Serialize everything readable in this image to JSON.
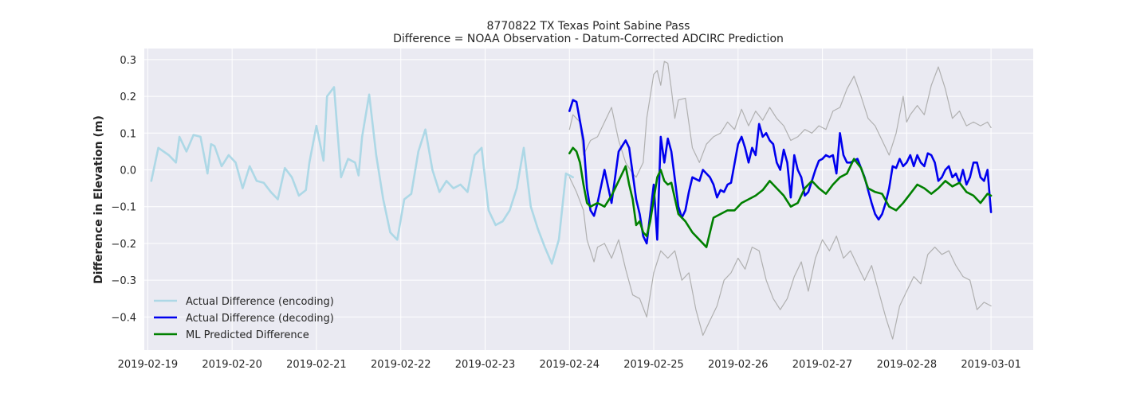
{
  "chart_data": {
    "type": "line",
    "title": "8770822 TX Texas Point Sabine Pass",
    "subtitle": "Difference = NOAA Observation - Datum-Corrected ADCIRC Prediction",
    "xlabel": "",
    "ylabel": "Difference in Elevation (m)",
    "xlim": [
      "2019-02-18 23:00",
      "2019-03-01 12:00"
    ],
    "ylim": [
      -0.49,
      0.33
    ],
    "x_ticks": [
      "2019-02-19",
      "2019-02-20",
      "2019-02-21",
      "2019-02-22",
      "2019-02-23",
      "2019-02-24",
      "2019-02-25",
      "2019-02-26",
      "2019-02-27",
      "2019-02-28",
      "2019-03-01"
    ],
    "y_ticks": [
      -0.4,
      -0.3,
      -0.2,
      -0.1,
      0.0,
      0.1,
      0.2,
      0.3
    ],
    "y_tick_labels": [
      "−0.4",
      "−0.3",
      "−0.2",
      "−0.1",
      "0.0",
      "0.1",
      "0.2",
      "0.3"
    ],
    "grid": true,
    "legend_position": "lower-left",
    "colors": {
      "background": "#eaeaf2",
      "grid": "#ffffff",
      "encoding": "#add8e6",
      "decoding": "#0000ee",
      "predicted": "#008000",
      "band": "#b0b0b0"
    },
    "series": [
      {
        "name": "Actual Difference (encoding)",
        "color": "#add8e6",
        "x": [
          "2019-02-19 01:00",
          "2019-02-19 03:00",
          "2019-02-19 06:00",
          "2019-02-19 08:00",
          "2019-02-19 09:00",
          "2019-02-19 11:00",
          "2019-02-19 13:00",
          "2019-02-19 15:00",
          "2019-02-19 17:00",
          "2019-02-19 18:00",
          "2019-02-19 19:00",
          "2019-02-19 21:00",
          "2019-02-19 23:00",
          "2019-02-20 01:00",
          "2019-02-20 03:00",
          "2019-02-20 05:00",
          "2019-02-20 07:00",
          "2019-02-20 09:00",
          "2019-02-20 11:00",
          "2019-02-20 13:00",
          "2019-02-20 15:00",
          "2019-02-20 17:00",
          "2019-02-20 19:00",
          "2019-02-20 21:00",
          "2019-02-20 22:00",
          "2019-02-21 00:00",
          "2019-02-21 02:00",
          "2019-02-21 03:00",
          "2019-02-21 05:00",
          "2019-02-21 07:00",
          "2019-02-21 09:00",
          "2019-02-21 11:00",
          "2019-02-21 12:00",
          "2019-02-21 13:00",
          "2019-02-21 15:00",
          "2019-02-21 17:00",
          "2019-02-21 19:00",
          "2019-02-21 21:00",
          "2019-02-21 23:00",
          "2019-02-22 01:00",
          "2019-02-22 03:00",
          "2019-02-22 05:00",
          "2019-02-22 07:00",
          "2019-02-22 09:00",
          "2019-02-22 11:00",
          "2019-02-22 13:00",
          "2019-02-22 15:00",
          "2019-02-22 17:00",
          "2019-02-22 19:00",
          "2019-02-22 21:00",
          "2019-02-22 23:00",
          "2019-02-23 01:00",
          "2019-02-23 03:00",
          "2019-02-23 05:00",
          "2019-02-23 07:00",
          "2019-02-23 09:00",
          "2019-02-23 11:00",
          "2019-02-23 13:00",
          "2019-02-23 15:00",
          "2019-02-23 17:00",
          "2019-02-23 19:00",
          "2019-02-23 21:00",
          "2019-02-23 23:00",
          "2019-02-24 01:00"
        ],
        "y": [
          -0.03,
          0.06,
          0.04,
          0.02,
          0.09,
          0.05,
          0.095,
          0.09,
          -0.01,
          0.07,
          0.065,
          0.01,
          0.04,
          0.02,
          -0.05,
          0.01,
          -0.03,
          -0.035,
          -0.06,
          -0.08,
          0.005,
          -0.02,
          -0.07,
          -0.055,
          0.02,
          0.12,
          0.025,
          0.2,
          0.225,
          -0.02,
          0.03,
          0.02,
          -0.015,
          0.09,
          0.205,
          0.04,
          -0.08,
          -0.17,
          -0.19,
          -0.08,
          -0.065,
          0.05,
          0.11,
          0.0,
          -0.06,
          -0.03,
          -0.05,
          -0.04,
          -0.06,
          0.04,
          0.06,
          -0.11,
          -0.15,
          -0.14,
          -0.11,
          -0.05,
          0.06,
          -0.1,
          -0.16,
          -0.21,
          -0.255,
          -0.19,
          -0.01,
          -0.02
        ]
      },
      {
        "name": "Actual Difference (decoding)",
        "color": "#0000ee",
        "x": [
          "2019-02-24 00:00",
          "2019-02-24 01:00",
          "2019-02-24 02:00",
          "2019-02-24 04:00",
          "2019-02-24 05:00",
          "2019-02-24 06:00",
          "2019-02-24 07:00",
          "2019-02-24 08:00",
          "2019-02-24 10:00",
          "2019-02-24 12:00",
          "2019-02-24 13:00",
          "2019-02-24 14:00",
          "2019-02-24 16:00",
          "2019-02-24 17:00",
          "2019-02-24 18:00",
          "2019-02-24 19:00",
          "2019-02-24 20:00",
          "2019-02-24 21:00",
          "2019-02-24 22:00",
          "2019-02-25 00:00",
          "2019-02-25 01:00",
          "2019-02-25 02:00",
          "2019-02-25 03:00",
          "2019-02-25 04:00",
          "2019-02-25 05:00",
          "2019-02-25 07:00",
          "2019-02-25 08:00",
          "2019-02-25 09:00",
          "2019-02-25 10:00",
          "2019-02-25 11:00",
          "2019-02-25 13:00",
          "2019-02-25 14:00",
          "2019-02-25 15:00",
          "2019-02-25 16:00",
          "2019-02-25 17:00",
          "2019-02-25 18:00",
          "2019-02-25 19:00",
          "2019-02-25 20:00",
          "2019-02-25 21:00",
          "2019-02-25 22:00",
          "2019-02-26 00:00",
          "2019-02-26 01:00",
          "2019-02-26 02:00",
          "2019-02-26 03:00",
          "2019-02-26 04:00",
          "2019-02-26 05:00",
          "2019-02-26 06:00",
          "2019-02-26 07:00",
          "2019-02-26 08:00",
          "2019-02-26 09:00",
          "2019-02-26 10:00",
          "2019-02-26 11:00",
          "2019-02-26 12:00",
          "2019-02-26 13:00",
          "2019-02-26 14:00",
          "2019-02-26 15:00",
          "2019-02-26 16:00",
          "2019-02-26 17:00",
          "2019-02-26 18:00",
          "2019-02-26 19:00",
          "2019-02-26 20:00",
          "2019-02-26 21:00",
          "2019-02-26 22:00",
          "2019-02-26 23:00",
          "2019-02-27 00:00",
          "2019-02-27 01:00",
          "2019-02-27 02:00",
          "2019-02-27 03:00",
          "2019-02-27 04:00",
          "2019-02-27 05:00",
          "2019-02-27 06:00",
          "2019-02-27 07:00",
          "2019-02-27 08:00",
          "2019-02-27 10:00",
          "2019-02-27 12:00",
          "2019-02-27 14:00",
          "2019-02-27 15:00",
          "2019-02-27 16:00",
          "2019-02-27 17:00",
          "2019-02-27 18:00",
          "2019-02-27 19:00",
          "2019-02-27 20:00",
          "2019-02-27 21:00",
          "2019-02-27 22:00",
          "2019-02-27 23:00",
          "2019-02-28 00:00",
          "2019-02-28 01:00",
          "2019-02-28 02:00",
          "2019-02-28 03:00",
          "2019-02-28 04:00",
          "2019-02-28 05:00",
          "2019-02-28 06:00",
          "2019-02-28 07:00",
          "2019-02-28 08:00",
          "2019-02-28 09:00",
          "2019-02-28 10:00",
          "2019-02-28 11:00",
          "2019-02-28 12:00",
          "2019-02-28 13:00",
          "2019-02-28 14:00",
          "2019-02-28 15:00",
          "2019-02-28 16:00",
          "2019-02-28 17:00",
          "2019-02-28 18:00",
          "2019-02-28 19:00",
          "2019-02-28 20:00",
          "2019-02-28 21:00",
          "2019-02-28 22:00",
          "2019-02-28 23:00",
          "2019-03-01 00:00"
        ],
        "y": [
          0.16,
          0.19,
          0.185,
          0.08,
          -0.05,
          -0.11,
          -0.125,
          -0.09,
          0.0,
          -0.09,
          -0.02,
          0.05,
          0.08,
          0.06,
          -0.01,
          -0.08,
          -0.12,
          -0.18,
          -0.2,
          -0.04,
          -0.19,
          0.09,
          0.02,
          0.085,
          0.05,
          -0.1,
          -0.13,
          -0.11,
          -0.06,
          -0.02,
          -0.03,
          0.0,
          -0.01,
          -0.02,
          -0.04,
          -0.075,
          -0.055,
          -0.06,
          -0.04,
          -0.035,
          0.07,
          0.09,
          0.06,
          0.02,
          0.06,
          0.04,
          0.125,
          0.09,
          0.1,
          0.08,
          0.07,
          0.02,
          0.0,
          0.055,
          0.02,
          -0.075,
          0.04,
          0.0,
          -0.02,
          -0.07,
          -0.06,
          -0.03,
          0.0,
          0.025,
          0.03,
          0.04,
          0.035,
          0.04,
          -0.01,
          0.1,
          0.04,
          0.02,
          0.02,
          0.03,
          -0.02,
          -0.09,
          -0.12,
          -0.135,
          -0.12,
          -0.09,
          -0.05,
          0.01,
          0.005,
          0.03,
          0.01,
          0.02,
          0.04,
          0.01,
          0.04,
          0.02,
          0.01,
          0.045,
          0.04,
          0.02,
          -0.03,
          -0.02,
          0.0,
          0.01,
          -0.02,
          -0.01,
          -0.035,
          0.0,
          -0.04,
          -0.02,
          0.02,
          0.02,
          -0.02,
          -0.03,
          0.0,
          -0.115
        ]
      },
      {
        "name": "ML Predicted Difference",
        "color": "#008000",
        "x": [
          "2019-02-24 00:00",
          "2019-02-24 01:00",
          "2019-02-24 02:00",
          "2019-02-24 03:00",
          "2019-02-24 04:00",
          "2019-02-24 05:00",
          "2019-02-24 06:00",
          "2019-02-24 08:00",
          "2019-02-24 10:00",
          "2019-02-24 12:00",
          "2019-02-24 14:00",
          "2019-02-24 16:00",
          "2019-02-24 17:00",
          "2019-02-24 18:00",
          "2019-02-24 19:00",
          "2019-02-24 20:00",
          "2019-02-24 21:00",
          "2019-02-24 22:00",
          "2019-02-24 23:00",
          "2019-02-25 00:00",
          "2019-02-25 01:00",
          "2019-02-25 02:00",
          "2019-02-25 03:00",
          "2019-02-25 04:00",
          "2019-02-25 05:00",
          "2019-02-25 07:00",
          "2019-02-25 09:00",
          "2019-02-25 11:00",
          "2019-02-25 13:00",
          "2019-02-25 15:00",
          "2019-02-25 17:00",
          "2019-02-25 19:00",
          "2019-02-25 21:00",
          "2019-02-25 23:00",
          "2019-02-26 01:00",
          "2019-02-26 03:00",
          "2019-02-26 05:00",
          "2019-02-26 07:00",
          "2019-02-26 09:00",
          "2019-02-26 11:00",
          "2019-02-26 13:00",
          "2019-02-26 15:00",
          "2019-02-26 17:00",
          "2019-02-26 19:00",
          "2019-02-26 21:00",
          "2019-02-26 23:00",
          "2019-02-27 01:00",
          "2019-02-27 03:00",
          "2019-02-27 05:00",
          "2019-02-27 07:00",
          "2019-02-27 09:00",
          "2019-02-27 11:00",
          "2019-02-27 13:00",
          "2019-02-27 15:00",
          "2019-02-27 17:00",
          "2019-02-27 19:00",
          "2019-02-27 21:00",
          "2019-02-27 23:00",
          "2019-02-28 01:00",
          "2019-02-28 03:00",
          "2019-02-28 05:00",
          "2019-02-28 07:00",
          "2019-02-28 09:00",
          "2019-02-28 11:00",
          "2019-02-28 13:00",
          "2019-02-28 15:00",
          "2019-02-28 17:00",
          "2019-02-28 19:00",
          "2019-02-28 21:00",
          "2019-02-28 23:00",
          "2019-03-01 00:00"
        ],
        "y": [
          0.045,
          0.06,
          0.05,
          0.02,
          -0.04,
          -0.09,
          -0.1,
          -0.09,
          -0.1,
          -0.07,
          -0.03,
          0.01,
          -0.04,
          -0.08,
          -0.15,
          -0.14,
          -0.17,
          -0.18,
          -0.14,
          -0.08,
          -0.02,
          0.0,
          -0.03,
          -0.04,
          -0.035,
          -0.12,
          -0.14,
          -0.17,
          -0.19,
          -0.21,
          -0.13,
          -0.12,
          -0.11,
          -0.11,
          -0.09,
          -0.08,
          -0.07,
          -0.055,
          -0.03,
          -0.05,
          -0.07,
          -0.1,
          -0.09,
          -0.05,
          -0.03,
          -0.05,
          -0.065,
          -0.04,
          -0.02,
          -0.01,
          0.03,
          0.005,
          -0.05,
          -0.06,
          -0.065,
          -0.1,
          -0.11,
          -0.09,
          -0.065,
          -0.04,
          -0.05,
          -0.065,
          -0.05,
          -0.03,
          -0.045,
          -0.035,
          -0.06,
          -0.07,
          -0.09,
          -0.065,
          -0.07
        ]
      },
      {
        "color": "#b0b0b0",
        "x": [
          "2019-02-24 00:00",
          "2019-02-24 01:00",
          "2019-02-24 02:00",
          "2019-02-24 03:00",
          "2019-02-24 04:00",
          "2019-02-24 06:00",
          "2019-02-24 08:00",
          "2019-02-24 10:00",
          "2019-02-24 12:00",
          "2019-02-24 14:00",
          "2019-02-24 16:00",
          "2019-02-24 18:00",
          "2019-02-24 19:00",
          "2019-02-24 20:00",
          "2019-02-24 21:00",
          "2019-02-24 22:00",
          "2019-02-25 00:00",
          "2019-02-25 01:00",
          "2019-02-25 02:00",
          "2019-02-25 03:00",
          "2019-02-25 04:00",
          "2019-02-25 05:00",
          "2019-02-25 06:00",
          "2019-02-25 07:00",
          "2019-02-25 09:00",
          "2019-02-25 11:00",
          "2019-02-25 13:00",
          "2019-02-25 15:00",
          "2019-02-25 17:00",
          "2019-02-25 19:00",
          "2019-02-25 21:00",
          "2019-02-25 23:00",
          "2019-02-26 01:00",
          "2019-02-26 03:00",
          "2019-02-26 05:00",
          "2019-02-26 07:00",
          "2019-02-26 09:00",
          "2019-02-26 11:00",
          "2019-02-26 13:00",
          "2019-02-26 15:00",
          "2019-02-26 17:00",
          "2019-02-26 19:00",
          "2019-02-26 21:00",
          "2019-02-26 23:00",
          "2019-02-27 01:00",
          "2019-02-27 03:00",
          "2019-02-27 05:00",
          "2019-02-27 07:00",
          "2019-02-27 09:00",
          "2019-02-27 11:00",
          "2019-02-27 13:00",
          "2019-02-27 15:00",
          "2019-02-27 17:00",
          "2019-02-27 19:00",
          "2019-02-27 21:00",
          "2019-02-27 23:00",
          "2019-02-28 00:00",
          "2019-02-28 01:00",
          "2019-02-28 03:00",
          "2019-02-28 05:00",
          "2019-02-28 07:00",
          "2019-02-28 09:00",
          "2019-02-28 11:00",
          "2019-02-28 13:00",
          "2019-02-28 15:00",
          "2019-02-28 17:00",
          "2019-02-28 19:00",
          "2019-02-28 21:00",
          "2019-02-28 23:00",
          "2019-03-01 00:00"
        ],
        "y": [
          0.11,
          0.15,
          0.14,
          0.13,
          0.04,
          0.08,
          0.09,
          0.13,
          0.17,
          0.08,
          0.02,
          -0.01,
          -0.02,
          0.0,
          0.02,
          0.14,
          0.26,
          0.27,
          0.23,
          0.295,
          0.29,
          0.22,
          0.14,
          0.19,
          0.195,
          0.06,
          0.02,
          0.07,
          0.09,
          0.1,
          0.13,
          0.11,
          0.165,
          0.12,
          0.16,
          0.135,
          0.17,
          0.14,
          0.12,
          0.08,
          0.09,
          0.11,
          0.1,
          0.12,
          0.11,
          0.16,
          0.17,
          0.22,
          0.255,
          0.2,
          0.14,
          0.12,
          0.08,
          0.04,
          0.1,
          0.2,
          0.13,
          0.15,
          0.175,
          0.15,
          0.23,
          0.28,
          0.22,
          0.14,
          0.16,
          0.12,
          0.13,
          0.12,
          0.13,
          0.115
        ]
      },
      {
        "color": "#b0b0b0",
        "x": [
          "2019-02-24 00:00",
          "2019-02-24 02:00",
          "2019-02-24 04:00",
          "2019-02-24 05:00",
          "2019-02-24 06:00",
          "2019-02-24 07:00",
          "2019-02-24 08:00",
          "2019-02-24 10:00",
          "2019-02-24 12:00",
          "2019-02-24 14:00",
          "2019-02-24 16:00",
          "2019-02-24 18:00",
          "2019-02-24 20:00",
          "2019-02-24 22:00",
          "2019-02-25 00:00",
          "2019-02-25 02:00",
          "2019-02-25 04:00",
          "2019-02-25 06:00",
          "2019-02-25 08:00",
          "2019-02-25 10:00",
          "2019-02-25 12:00",
          "2019-02-25 14:00",
          "2019-02-25 16:00",
          "2019-02-25 18:00",
          "2019-02-25 20:00",
          "2019-02-25 22:00",
          "2019-02-26 00:00",
          "2019-02-26 02:00",
          "2019-02-26 04:00",
          "2019-02-26 06:00",
          "2019-02-26 08:00",
          "2019-02-26 10:00",
          "2019-02-26 12:00",
          "2019-02-26 14:00",
          "2019-02-26 16:00",
          "2019-02-26 18:00",
          "2019-02-26 20:00",
          "2019-02-26 22:00",
          "2019-02-27 00:00",
          "2019-02-27 02:00",
          "2019-02-27 04:00",
          "2019-02-27 06:00",
          "2019-02-27 08:00",
          "2019-02-27 10:00",
          "2019-02-27 12:00",
          "2019-02-27 14:00",
          "2019-02-27 16:00",
          "2019-02-27 18:00",
          "2019-02-27 20:00",
          "2019-02-27 22:00",
          "2019-02-28 00:00",
          "2019-02-28 02:00",
          "2019-02-28 04:00",
          "2019-02-28 06:00",
          "2019-02-28 08:00",
          "2019-02-28 10:00",
          "2019-02-28 12:00",
          "2019-02-28 14:00",
          "2019-02-28 16:00",
          "2019-02-28 18:00",
          "2019-02-28 20:00",
          "2019-02-28 22:00",
          "2019-03-01 00:00"
        ],
        "y": [
          -0.02,
          -0.06,
          -0.11,
          -0.19,
          -0.22,
          -0.25,
          -0.21,
          -0.2,
          -0.24,
          -0.19,
          -0.27,
          -0.34,
          -0.35,
          -0.4,
          -0.28,
          -0.22,
          -0.24,
          -0.22,
          -0.3,
          -0.28,
          -0.38,
          -0.45,
          -0.41,
          -0.37,
          -0.3,
          -0.28,
          -0.24,
          -0.27,
          -0.21,
          -0.22,
          -0.3,
          -0.35,
          -0.38,
          -0.35,
          -0.29,
          -0.25,
          -0.33,
          -0.24,
          -0.19,
          -0.22,
          -0.18,
          -0.24,
          -0.22,
          -0.26,
          -0.3,
          -0.26,
          -0.33,
          -0.4,
          -0.46,
          -0.37,
          -0.33,
          -0.29,
          -0.31,
          -0.23,
          -0.21,
          -0.23,
          -0.22,
          -0.26,
          -0.29,
          -0.3,
          -0.38,
          -0.36,
          -0.37
        ]
      }
    ]
  },
  "legend": {
    "items": [
      {
        "label": "Actual Difference (encoding)",
        "color": "#add8e6"
      },
      {
        "label": "Actual Difference (decoding)",
        "color": "#0000ee"
      },
      {
        "label": "ML Predicted Difference",
        "color": "#008000"
      }
    ]
  }
}
